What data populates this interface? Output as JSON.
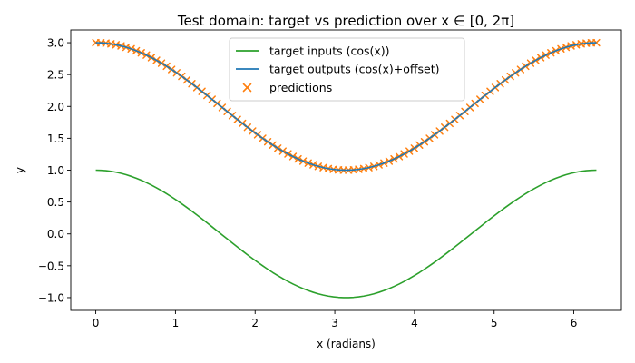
{
  "chart_data": {
    "type": "line",
    "title": "Test domain: target vs prediction over x ∈ [0, 2π]",
    "xlabel": "x (radians)",
    "ylabel": "y",
    "xlim": [
      -0.314,
      6.597
    ],
    "ylim": [
      -1.2,
      3.2
    ],
    "xticks": [
      0,
      1,
      2,
      3,
      4,
      5,
      6
    ],
    "yticks": [
      -1.0,
      -0.5,
      0.0,
      0.5,
      1.0,
      1.5,
      2.0,
      2.5,
      3.0
    ],
    "xtick_labels": [
      "0",
      "1",
      "2",
      "3",
      "4",
      "5",
      "6"
    ],
    "ytick_labels": [
      "−1.0",
      "−0.5",
      "0.0",
      "0.5",
      "1.0",
      "1.5",
      "2.0",
      "2.5",
      "3.0"
    ],
    "grid": false,
    "legend_position": "top-center",
    "x_range": [
      0,
      6.2832
    ],
    "num_points": 100,
    "series": [
      {
        "name": "target inputs (cos(x))",
        "kind": "line",
        "color": "#2ca02c",
        "function": "cos(x)",
        "offset": 0
      },
      {
        "name": "target outputs (cos(x)+offset)",
        "kind": "line",
        "color": "#1f77b4",
        "function": "cos(x)+offset",
        "offset": 2
      },
      {
        "name": "predictions",
        "kind": "scatter",
        "marker": "x",
        "color": "#ff7f0e",
        "function": "cos(x)+offset",
        "offset": 2
      }
    ]
  }
}
